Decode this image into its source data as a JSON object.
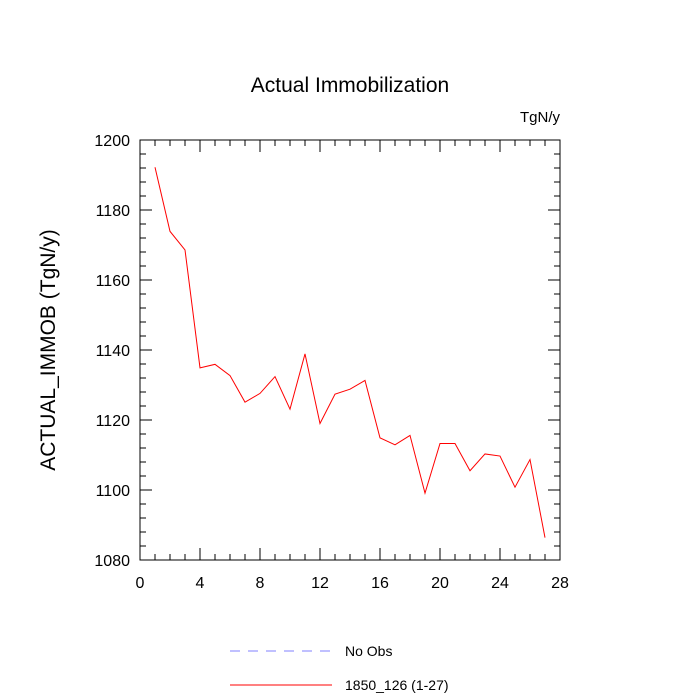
{
  "chart_data": {
    "type": "line",
    "title": "Actual Immobilization",
    "units_label": "TgN/y",
    "xlabel": "",
    "ylabel": "ACTUAL_IMMOB  (TgN/y)",
    "xlim": [
      0,
      28
    ],
    "ylim": [
      1080,
      1200
    ],
    "xticks": [
      0,
      4,
      8,
      12,
      16,
      20,
      24,
      28
    ],
    "yticks": [
      1080,
      1100,
      1120,
      1140,
      1160,
      1180,
      1200
    ],
    "series": [
      {
        "name": "No Obs",
        "color": "#8080ff",
        "style": "dashed",
        "x": [],
        "values": []
      },
      {
        "name": "1850_126 (1-27)",
        "color": "#ff0000",
        "style": "solid",
        "x": [
          1,
          2,
          3,
          4,
          5,
          6,
          7,
          8,
          9,
          10,
          11,
          12,
          13,
          14,
          15,
          16,
          17,
          18,
          19,
          20,
          21,
          22,
          23,
          24,
          25,
          26,
          27
        ],
        "values": [
          1192.2,
          1173.9,
          1168.6,
          1134.9,
          1135.9,
          1132.7,
          1125.1,
          1127.6,
          1132.4,
          1123.1,
          1138.9,
          1119.0,
          1127.4,
          1128.8,
          1131.3,
          1114.9,
          1112.9,
          1115.6,
          1099.1,
          1113.3,
          1113.3,
          1105.5,
          1110.3,
          1109.7,
          1100.8,
          1108.7,
          1086.4
        ]
      }
    ]
  }
}
